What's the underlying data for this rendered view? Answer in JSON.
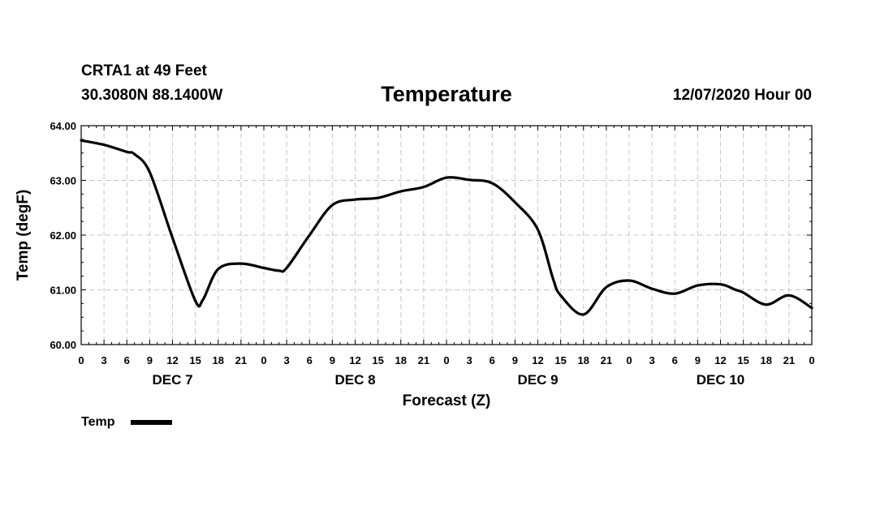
{
  "header": {
    "station": "CRTA1 at 49 Feet",
    "coords": "30.3080N 88.1400W",
    "datetime": "12/07/2020 Hour 00"
  },
  "chart_data": {
    "type": "line",
    "title": "Temperature",
    "xlabel": "Forecast (Z)",
    "ylabel": "Temp (degF)",
    "xlim": [
      0,
      96
    ],
    "ylim": [
      60.0,
      64.0
    ],
    "grid": true,
    "legend_placement": "bottom-left",
    "x_tick_step": 3,
    "x_tick_labels": [
      "0",
      "3",
      "6",
      "9",
      "12",
      "15",
      "18",
      "21",
      "0",
      "3",
      "6",
      "9",
      "12",
      "15",
      "18",
      "21",
      "0",
      "3",
      "6",
      "9",
      "12",
      "15",
      "18",
      "21",
      "0",
      "3",
      "6",
      "9",
      "12",
      "15",
      "18",
      "21",
      "0"
    ],
    "y_ticks": [
      60.0,
      61.0,
      62.0,
      63.0,
      64.0
    ],
    "y_tick_labels": [
      "60.00",
      "61.00",
      "62.00",
      "63.00",
      "64.00"
    ],
    "day_labels": [
      {
        "label": "DEC 7",
        "x": 12
      },
      {
        "label": "DEC 8",
        "x": 36
      },
      {
        "label": "DEC 9",
        "x": 60
      },
      {
        "label": "DEC 10",
        "x": 84
      }
    ],
    "series": [
      {
        "name": "Temp",
        "color": "#000000",
        "x": [
          0,
          3,
          6,
          7,
          9,
          12,
          15,
          16,
          18,
          21,
          24,
          26,
          27,
          30,
          33,
          36,
          39,
          42,
          45,
          48,
          51,
          54,
          57,
          60,
          62,
          63,
          66,
          69,
          72,
          75,
          78,
          81,
          84,
          86,
          87,
          90,
          93,
          96
        ],
        "y": [
          63.73,
          63.65,
          63.52,
          63.48,
          63.15,
          61.95,
          60.8,
          60.82,
          61.38,
          61.48,
          61.4,
          61.35,
          61.4,
          62.0,
          62.55,
          62.65,
          62.68,
          62.8,
          62.88,
          63.05,
          63.01,
          62.95,
          62.6,
          62.1,
          61.2,
          60.9,
          60.55,
          61.05,
          61.17,
          61.02,
          60.93,
          61.08,
          61.1,
          61.0,
          60.95,
          60.73,
          60.9,
          60.67
        ]
      }
    ]
  }
}
